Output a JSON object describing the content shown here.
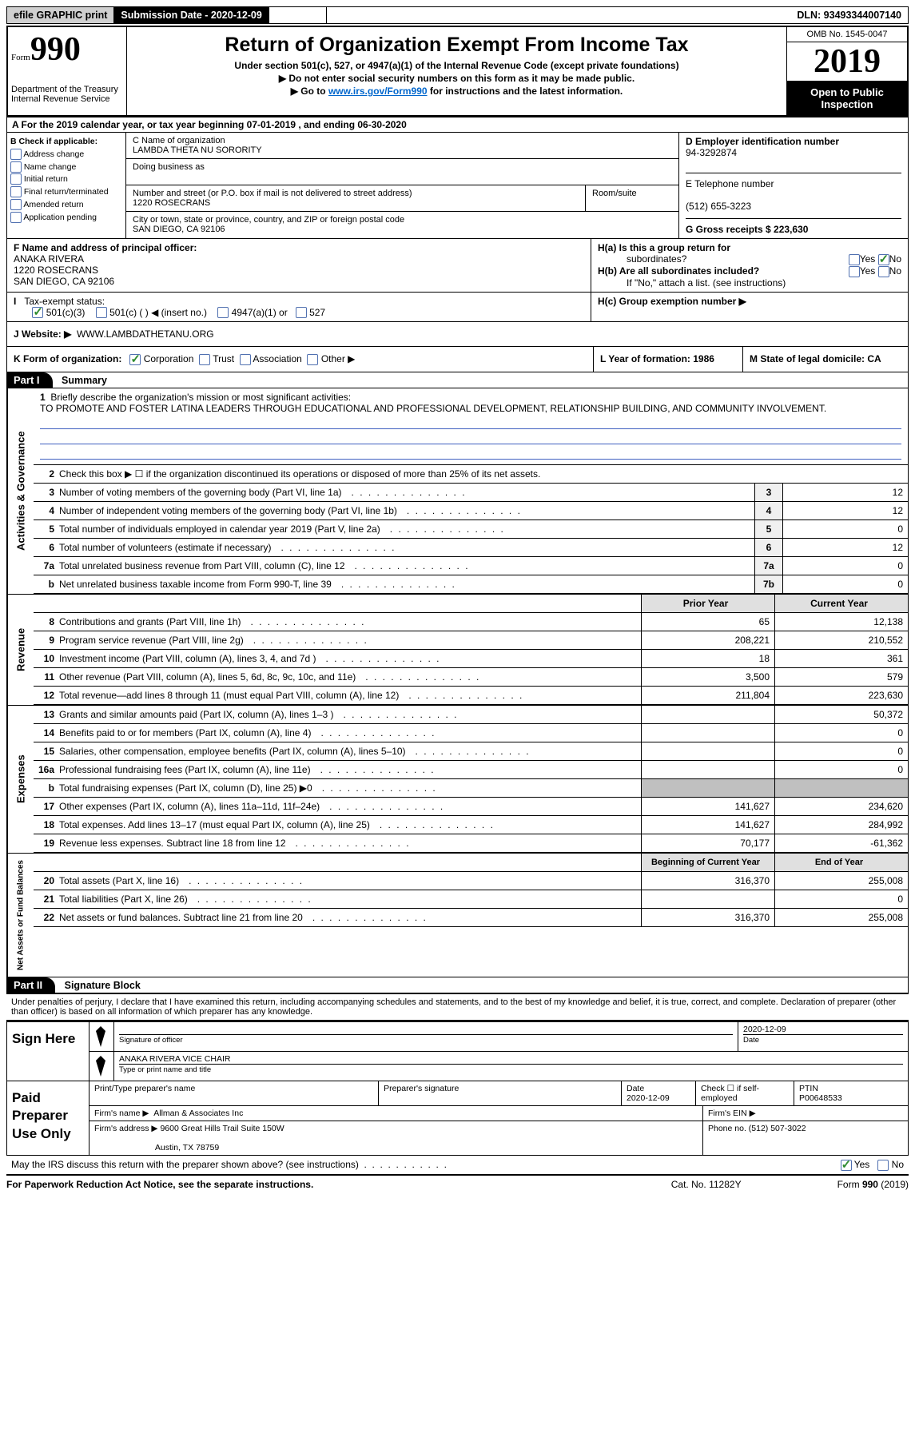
{
  "top": {
    "efile": "efile GRAPHIC print",
    "submission_label": "Submission Date - 2020-12-09",
    "dln": "DLN: 93493344007140"
  },
  "header": {
    "form_word": "Form",
    "form_num": "990",
    "dept1": "Department of the Treasury",
    "dept2": "Internal Revenue Service",
    "title": "Return of Organization Exempt From Income Tax",
    "sub1": "Under section 501(c), 527, or 4947(a)(1) of the Internal Revenue Code (except private foundations)",
    "sub2": "▶ Do not enter social security numbers on this form as it may be made public.",
    "sub3a": "▶ Go to ",
    "sub3_link": "www.irs.gov/Form990",
    "sub3b": " for instructions and the latest information.",
    "omb": "OMB No. 1545-0047",
    "year": "2019",
    "open1": "Open to Public",
    "open2": "Inspection"
  },
  "rowA": "A For the 2019 calendar year, or tax year beginning 07-01-2019   , and ending 06-30-2020",
  "boxB": {
    "label": "B Check if applicable:",
    "opts": [
      "Address change",
      "Name change",
      "Initial return",
      "Final return/terminated",
      "Amended return",
      "Application pending"
    ]
  },
  "boxC": {
    "name_label": "C Name of organization",
    "name": "LAMBDA THETA NU SORORITY",
    "dba_label": "Doing business as",
    "addr_label": "Number and street (or P.O. box if mail is not delivered to street address)",
    "room_label": "Room/suite",
    "addr": "1220 ROSECRANS",
    "city_label": "City or town, state or province, country, and ZIP or foreign postal code",
    "city": "SAN DIEGO, CA  92106"
  },
  "boxD": {
    "label": "D Employer identification number",
    "val": "94-3292874"
  },
  "boxE": {
    "label": "E Telephone number",
    "val": "(512) 655-3223"
  },
  "boxG": {
    "label": "G Gross receipts $ 223,630"
  },
  "boxF": {
    "label": "F  Name and address of principal officer:",
    "name": "ANAKA RIVERA",
    "addr": "1220 ROSECRANS",
    "city": "SAN DIEGO, CA  92106"
  },
  "boxH": {
    "a": "H(a)  Is this a group return for",
    "a2": "subordinates?",
    "b": "H(b)  Are all subordinates included?",
    "note": "If \"No,\" attach a list. (see instructions)",
    "c": "H(c)  Group exemption number ▶",
    "yes": "Yes",
    "no": "No"
  },
  "boxI": {
    "label": "Tax-exempt status:",
    "o1": "501(c)(3)",
    "o2": "501(c) (  ) ◀ (insert no.)",
    "o3": "4947(a)(1) or",
    "o4": "527"
  },
  "boxJ": {
    "label": "J   Website: ▶",
    "val": "WWW.LAMBDATHETANU.ORG"
  },
  "boxK": {
    "label": "K Form of organization:",
    "o1": "Corporation",
    "o2": "Trust",
    "o3": "Association",
    "o4": "Other ▶"
  },
  "boxL": {
    "label": "L Year of formation: 1986"
  },
  "boxM": {
    "label": "M State of legal domicile: CA"
  },
  "parts": {
    "p1": "Part I",
    "p1_title": "Summary",
    "p2": "Part II",
    "p2_title": "Signature Block"
  },
  "line1": {
    "num": "1",
    "label": "Briefly describe the organization's mission or most significant activities:",
    "text": "TO PROMOTE AND FOSTER LATINA LEADERS THROUGH EDUCATIONAL AND PROFESSIONAL DEVELOPMENT, RELATIONSHIP BUILDING, AND COMMUNITY INVOLVEMENT."
  },
  "line2": "Check this box ▶ ☐  if the organization discontinued its operations or disposed of more than 25% of its net assets.",
  "govLines": [
    {
      "n": "3",
      "d": "Number of voting members of the governing body (Part VI, line 1a)",
      "b": "3",
      "v": "12"
    },
    {
      "n": "4",
      "d": "Number of independent voting members of the governing body (Part VI, line 1b)",
      "b": "4",
      "v": "12"
    },
    {
      "n": "5",
      "d": "Total number of individuals employed in calendar year 2019 (Part V, line 2a)",
      "b": "5",
      "v": "0"
    },
    {
      "n": "6",
      "d": "Total number of volunteers (estimate if necessary)",
      "b": "6",
      "v": "12"
    },
    {
      "n": "7a",
      "d": "Total unrelated business revenue from Part VIII, column (C), line 12",
      "b": "7a",
      "v": "0"
    },
    {
      "n": "b",
      "d": "Net unrelated business taxable income from Form 990-T, line 39",
      "b": "7b",
      "v": "0"
    }
  ],
  "twoColHeader": {
    "prior": "Prior Year",
    "current": "Current Year"
  },
  "revenue": [
    {
      "n": "8",
      "d": "Contributions and grants (Part VIII, line 1h)",
      "p": "65",
      "c": "12,138"
    },
    {
      "n": "9",
      "d": "Program service revenue (Part VIII, line 2g)",
      "p": "208,221",
      "c": "210,552"
    },
    {
      "n": "10",
      "d": "Investment income (Part VIII, column (A), lines 3, 4, and 7d )",
      "p": "18",
      "c": "361"
    },
    {
      "n": "11",
      "d": "Other revenue (Part VIII, column (A), lines 5, 6d, 8c, 9c, 10c, and 11e)",
      "p": "3,500",
      "c": "579"
    },
    {
      "n": "12",
      "d": "Total revenue—add lines 8 through 11 (must equal Part VIII, column (A), line 12)",
      "p": "211,804",
      "c": "223,630"
    }
  ],
  "expenses": [
    {
      "n": "13",
      "d": "Grants and similar amounts paid (Part IX, column (A), lines 1–3 )",
      "p": "",
      "c": "50,372"
    },
    {
      "n": "14",
      "d": "Benefits paid to or for members (Part IX, column (A), line 4)",
      "p": "",
      "c": "0"
    },
    {
      "n": "15",
      "d": "Salaries, other compensation, employee benefits (Part IX, column (A), lines 5–10)",
      "p": "",
      "c": "0"
    },
    {
      "n": "16a",
      "d": "Professional fundraising fees (Part IX, column (A), line 11e)",
      "p": "",
      "c": "0"
    },
    {
      "n": "b",
      "d": "Total fundraising expenses (Part IX, column (D), line 25) ▶0",
      "p": "SHADE",
      "c": "SHADE"
    },
    {
      "n": "17",
      "d": "Other expenses (Part IX, column (A), lines 11a–11d, 11f–24e)",
      "p": "141,627",
      "c": "234,620"
    },
    {
      "n": "18",
      "d": "Total expenses. Add lines 13–17 (must equal Part IX, column (A), line 25)",
      "p": "141,627",
      "c": "284,992"
    },
    {
      "n": "19",
      "d": "Revenue less expenses. Subtract line 18 from line 12",
      "p": "70,177",
      "c": "-61,362"
    }
  ],
  "netHeader": {
    "prior": "Beginning of Current Year",
    "current": "End of Year"
  },
  "net": [
    {
      "n": "20",
      "d": "Total assets (Part X, line 16)",
      "p": "316,370",
      "c": "255,008"
    },
    {
      "n": "21",
      "d": "Total liabilities (Part X, line 26)",
      "p": "",
      "c": "0"
    },
    {
      "n": "22",
      "d": "Net assets or fund balances. Subtract line 21 from line 20",
      "p": "316,370",
      "c": "255,008"
    }
  ],
  "vtabs": {
    "gov": "Activities & Governance",
    "rev": "Revenue",
    "exp": "Expenses",
    "net": "Net Assets or Fund Balances"
  },
  "penalties": "Under penalties of perjury, I declare that I have examined this return, including accompanying schedules and statements, and to the best of my knowledge and belief, it is true, correct, and complete. Declaration of preparer (other than officer) is based on all information of which preparer has any knowledge.",
  "sign": {
    "label": "Sign Here",
    "sig_officer": "Signature of officer",
    "date": "2020-12-09",
    "date_label": "Date",
    "name": "ANAKA RIVERA  VICE CHAIR",
    "name_label": "Type or print name and title"
  },
  "paid": {
    "label": "Paid Preparer Use Only",
    "col1": "Print/Type preparer's name",
    "col2": "Preparer's signature",
    "col3": "Date",
    "col3_val": "2020-12-09",
    "col4": "Check ☐ if self-employed",
    "col5": "PTIN",
    "col5_val": "P00648533",
    "firm_name_label": "Firm's name    ▶",
    "firm_name": "Allman & Associates Inc",
    "firm_ein_label": "Firm's EIN ▶",
    "firm_addr_label": "Firm's address ▶",
    "firm_addr1": "9600 Great Hills Trail Suite 150W",
    "firm_addr2": "Austin, TX  78759",
    "phone_label": "Phone no. (512) 507-3022"
  },
  "discuss": {
    "text": "May the IRS discuss this return with the preparer shown above? (see instructions)",
    "yes": "Yes",
    "no": "No"
  },
  "footer": {
    "left": "For Paperwork Reduction Act Notice, see the separate instructions.",
    "center": "Cat. No. 11282Y",
    "right": "Form 990 (2019)"
  }
}
